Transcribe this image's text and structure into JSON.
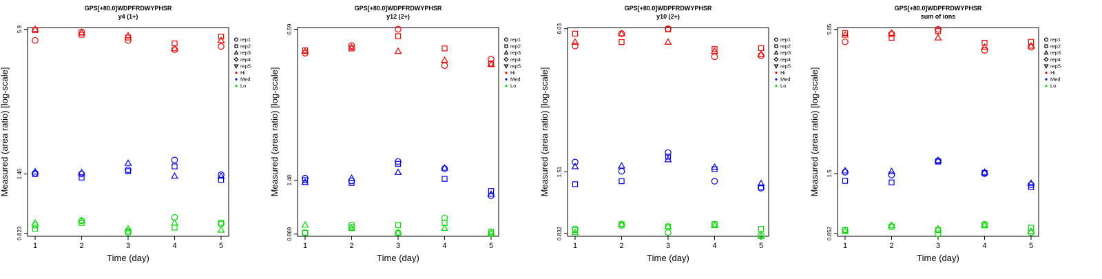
{
  "colors": {
    "Hi": "#ff0000",
    "Med": "#0000ff",
    "Lo": "#00dd00"
  },
  "legend": [
    {
      "label": "rep1",
      "shape": "circle"
    },
    {
      "label": "rep2",
      "shape": "square"
    },
    {
      "label": "rep3",
      "shape": "triangle-up"
    },
    {
      "label": "rep4",
      "shape": "diamond"
    },
    {
      "label": "rep5",
      "shape": "triangle-down"
    },
    {
      "label": "Hi",
      "shape": "dot",
      "color": "#ff0000"
    },
    {
      "label": "Med",
      "shape": "dot",
      "color": "#0000ff"
    },
    {
      "label": "Lo",
      "shape": "dot",
      "color": "#00dd00"
    }
  ],
  "chart_data": [
    {
      "type": "scatter",
      "title": "GPS[+80.0]WDPFRDWYPHSR",
      "subtitle": "y4 (1+)",
      "xlabel": "Time (day)",
      "ylabel": "Measured (area ratio) [log-scale]",
      "x_ticks": [
        "1",
        "2",
        "3",
        "4",
        "5"
      ],
      "y_ticks": [
        "0.823",
        "1.46",
        "5.9"
      ],
      "y_tick_values": [
        0.823,
        1.46,
        5.9
      ],
      "y_scale": "log",
      "ylim": [
        0.8,
        6.0
      ],
      "legend_position": "right",
      "series": [
        {
          "group": "Hi",
          "rep": "rep1",
          "points": [
            [
              1,
              5.3
            ],
            [
              2,
              5.75
            ],
            [
              3,
              5.3
            ],
            [
              4,
              4.85
            ],
            [
              5,
              5.0
            ]
          ]
        },
        {
          "group": "Hi",
          "rep": "rep2",
          "points": [
            [
              1,
              5.85
            ],
            [
              2,
              5.6
            ],
            [
              3,
              5.45
            ],
            [
              4,
              5.15
            ],
            [
              5,
              5.5
            ]
          ]
        },
        {
          "group": "Hi",
          "rep": "rep3",
          "points": [
            [
              1,
              5.9
            ],
            [
              2,
              5.7
            ],
            [
              3,
              5.55
            ],
            [
              4,
              4.9
            ],
            [
              5,
              5.3
            ]
          ]
        },
        {
          "group": "Med",
          "rep": "rep1",
          "points": [
            [
              1,
              1.47
            ],
            [
              2,
              1.46
            ],
            [
              3,
              1.52
            ],
            [
              4,
              1.67
            ],
            [
              5,
              1.45
            ]
          ]
        },
        {
          "group": "Med",
          "rep": "rep2",
          "points": [
            [
              1,
              1.46
            ],
            [
              2,
              1.41
            ],
            [
              3,
              1.5
            ],
            [
              4,
              1.57
            ],
            [
              5,
              1.38
            ]
          ]
        },
        {
          "group": "Med",
          "rep": "rep3",
          "points": [
            [
              1,
              1.49
            ],
            [
              2,
              1.48
            ],
            [
              3,
              1.62
            ],
            [
              4,
              1.43
            ],
            [
              5,
              1.43
            ]
          ]
        },
        {
          "group": "Lo",
          "rep": "rep1",
          "points": [
            [
              1,
              0.89
            ],
            [
              2,
              0.93
            ],
            [
              3,
              0.83
            ],
            [
              4,
              0.96
            ],
            [
              5,
              0.9
            ]
          ]
        },
        {
          "group": "Lo",
          "rep": "rep2",
          "points": [
            [
              1,
              0.86
            ],
            [
              2,
              0.91
            ],
            [
              3,
              0.84
            ],
            [
              4,
              0.87
            ],
            [
              5,
              0.91
            ]
          ]
        },
        {
          "group": "Lo",
          "rep": "rep3",
          "points": [
            [
              1,
              0.91
            ],
            [
              2,
              0.93
            ],
            [
              3,
              0.86
            ],
            [
              4,
              0.91
            ],
            [
              5,
              0.85
            ]
          ]
        }
      ]
    },
    {
      "type": "scatter",
      "title": "GPS[+80.0]WDPFRDWYPHSR",
      "subtitle": "y12 (2+)",
      "xlabel": "Time (day)",
      "ylabel": "Measured (area ratio) [log-scale]",
      "x_ticks": [
        "1",
        "2",
        "3",
        "4",
        "5"
      ],
      "y_ticks": [
        "0.869",
        "1.48",
        "6.59"
      ],
      "y_tick_values": [
        0.869,
        1.48,
        6.59
      ],
      "y_scale": "log",
      "ylim": [
        0.85,
        6.7
      ],
      "legend_position": "right",
      "series": [
        {
          "group": "Hi",
          "rep": "rep1",
          "points": [
            [
              1,
              5.2
            ],
            [
              2,
              5.6
            ],
            [
              3,
              6.59
            ],
            [
              4,
              4.6
            ],
            [
              5,
              4.9
            ]
          ]
        },
        {
          "group": "Hi",
          "rep": "rep2",
          "points": [
            [
              1,
              5.35
            ],
            [
              2,
              5.45
            ],
            [
              3,
              6.15
            ],
            [
              4,
              5.45
            ],
            [
              5,
              4.7
            ]
          ]
        },
        {
          "group": "Hi",
          "rep": "rep3",
          "points": [
            [
              1,
              5.3
            ],
            [
              2,
              5.5
            ],
            [
              3,
              5.3
            ],
            [
              4,
              4.85
            ],
            [
              5,
              4.65
            ]
          ]
        },
        {
          "group": "Med",
          "rep": "rep1",
          "points": [
            [
              1,
              1.51
            ],
            [
              2,
              1.47
            ],
            [
              3,
              1.78
            ],
            [
              4,
              1.66
            ],
            [
              5,
              1.27
            ]
          ]
        },
        {
          "group": "Med",
          "rep": "rep2",
          "points": [
            [
              1,
              1.48
            ],
            [
              2,
              1.44
            ],
            [
              3,
              1.74
            ],
            [
              4,
              1.5
            ],
            [
              5,
              1.33
            ]
          ]
        },
        {
          "group": "Med",
          "rep": "rep3",
          "points": [
            [
              1,
              1.45
            ],
            [
              2,
              1.51
            ],
            [
              3,
              1.6
            ],
            [
              4,
              1.67
            ],
            [
              5,
              1.29
            ]
          ]
        },
        {
          "group": "Lo",
          "rep": "rep1",
          "points": [
            [
              1,
              0.88
            ],
            [
              2,
              0.95
            ],
            [
              3,
              0.88
            ],
            [
              4,
              1.02
            ],
            [
              5,
              0.87
            ]
          ]
        },
        {
          "group": "Lo",
          "rep": "rep2",
          "points": [
            [
              1,
              0.88
            ],
            [
              2,
              0.93
            ],
            [
              3,
              0.95
            ],
            [
              4,
              0.97
            ],
            [
              5,
              0.89
            ]
          ]
        },
        {
          "group": "Lo",
          "rep": "rep3",
          "points": [
            [
              1,
              0.95
            ],
            [
              2,
              0.92
            ],
            [
              3,
              0.88
            ],
            [
              4,
              0.92
            ],
            [
              5,
              0.88
            ]
          ]
        }
      ]
    },
    {
      "type": "scatter",
      "title": "GPS[+80.0]WDPFRDWYPHSR",
      "subtitle": "y10 (2+)",
      "xlabel": "Time (day)",
      "ylabel": "Measured (area ratio) [log-scale]",
      "x_ticks": [
        "1",
        "2",
        "3",
        "4",
        "5"
      ],
      "y_ticks": [
        "0.832",
        "1.51",
        "6.03"
      ],
      "y_tick_values": [
        0.832,
        1.51,
        6.03
      ],
      "y_scale": "log",
      "ylim": [
        0.81,
        6.1
      ],
      "legend_position": "right",
      "series": [
        {
          "group": "Hi",
          "rep": "rep1",
          "points": [
            [
              1,
              5.1
            ],
            [
              2,
              5.75
            ],
            [
              3,
              6.03
            ],
            [
              4,
              4.6
            ],
            [
              5,
              4.65
            ]
          ]
        },
        {
          "group": "Hi",
          "rep": "rep2",
          "points": [
            [
              1,
              5.75
            ],
            [
              2,
              5.3
            ],
            [
              3,
              6.0
            ],
            [
              4,
              4.95
            ],
            [
              5,
              5.0
            ]
          ]
        },
        {
          "group": "Hi",
          "rep": "rep3",
          "points": [
            [
              1,
              5.3
            ],
            [
              2,
              5.75
            ],
            [
              3,
              5.3
            ],
            [
              4,
              4.85
            ],
            [
              5,
              4.7
            ]
          ]
        },
        {
          "group": "Med",
          "rep": "rep1",
          "points": [
            [
              1,
              1.66
            ],
            [
              2,
              1.52
            ],
            [
              3,
              1.82
            ],
            [
              4,
              1.38
            ],
            [
              5,
              1.29
            ]
          ]
        },
        {
          "group": "Med",
          "rep": "rep2",
          "points": [
            [
              1,
              1.34
            ],
            [
              2,
              1.38
            ],
            [
              3,
              1.75
            ],
            [
              4,
              1.55
            ],
            [
              5,
              1.3
            ]
          ]
        },
        {
          "group": "Med",
          "rep": "rep3",
          "points": [
            [
              1,
              1.59
            ],
            [
              2,
              1.6
            ],
            [
              3,
              1.7
            ],
            [
              4,
              1.58
            ],
            [
              5,
              1.35
            ]
          ]
        },
        {
          "group": "Lo",
          "rep": "rep1",
          "points": [
            [
              1,
              0.87
            ],
            [
              2,
              0.9
            ],
            [
              3,
              0.84
            ],
            [
              4,
              0.91
            ],
            [
              5,
              0.82
            ]
          ]
        },
        {
          "group": "Lo",
          "rep": "rep2",
          "points": [
            [
              1,
              0.86
            ],
            [
              2,
              0.91
            ],
            [
              3,
              0.89
            ],
            [
              4,
              0.91
            ],
            [
              5,
              0.87
            ]
          ]
        },
        {
          "group": "Lo",
          "rep": "rep3",
          "points": [
            [
              1,
              0.84
            ],
            [
              2,
              0.91
            ],
            [
              3,
              0.89
            ],
            [
              4,
              0.9
            ],
            [
              5,
              0.81
            ]
          ]
        }
      ]
    },
    {
      "type": "scatter",
      "title": "GPS[+80.0]WDPFRDWYPHSR",
      "subtitle": "sum of ions",
      "xlabel": "Time (day)",
      "ylabel": "Measured (area ratio) [log-scale]",
      "x_ticks": [
        "1",
        "2",
        "3",
        "4",
        "5"
      ],
      "y_ticks": [
        "0.852",
        "1.5",
        "5.85"
      ],
      "y_tick_values": [
        0.852,
        1.5,
        5.85
      ],
      "y_scale": "log",
      "ylim": [
        0.83,
        5.95
      ],
      "legend_position": "right",
      "series": [
        {
          "group": "Hi",
          "rep": "rep1",
          "points": [
            [
              1,
              5.2
            ],
            [
              2,
              5.6
            ],
            [
              3,
              5.85
            ],
            [
              4,
              4.8
            ],
            [
              5,
              4.95
            ]
          ]
        },
        {
          "group": "Hi",
          "rep": "rep2",
          "points": [
            [
              1,
              5.65
            ],
            [
              2,
              5.4
            ],
            [
              3,
              5.75
            ],
            [
              4,
              5.15
            ],
            [
              5,
              5.2
            ]
          ]
        },
        {
          "group": "Hi",
          "rep": "rep3",
          "points": [
            [
              1,
              5.55
            ],
            [
              2,
              5.65
            ],
            [
              3,
              5.4
            ],
            [
              4,
              4.95
            ],
            [
              5,
              5.0
            ]
          ]
        },
        {
          "group": "Med",
          "rep": "rep1",
          "points": [
            [
              1,
              1.52
            ],
            [
              2,
              1.48
            ],
            [
              3,
              1.69
            ],
            [
              4,
              1.5
            ],
            [
              5,
              1.35
            ]
          ]
        },
        {
          "group": "Med",
          "rep": "rep2",
          "points": [
            [
              1,
              1.4
            ],
            [
              2,
              1.38
            ],
            [
              3,
              1.68
            ],
            [
              4,
              1.51
            ],
            [
              5,
              1.32
            ]
          ]
        },
        {
          "group": "Med",
          "rep": "rep3",
          "points": [
            [
              1,
              1.54
            ],
            [
              2,
              1.53
            ],
            [
              3,
              1.7
            ],
            [
              4,
              1.52
            ],
            [
              5,
              1.37
            ]
          ]
        },
        {
          "group": "Lo",
          "rep": "rep1",
          "points": [
            [
              1,
              0.88
            ],
            [
              2,
              0.91
            ],
            [
              3,
              0.85
            ],
            [
              4,
              0.93
            ],
            [
              5,
              0.86
            ]
          ]
        },
        {
          "group": "Lo",
          "rep": "rep2",
          "points": [
            [
              1,
              0.88
            ],
            [
              2,
              0.91
            ],
            [
              3,
              0.88
            ],
            [
              4,
              0.92
            ],
            [
              5,
              0.9
            ]
          ]
        },
        {
          "group": "Lo",
          "rep": "rep3",
          "points": [
            [
              1,
              0.87
            ],
            [
              2,
              0.92
            ],
            [
              3,
              0.89
            ],
            [
              4,
              0.92
            ],
            [
              5,
              0.87
            ]
          ]
        }
      ]
    }
  ]
}
